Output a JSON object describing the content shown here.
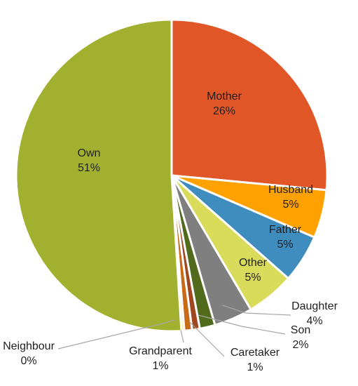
{
  "chart_data": {
    "type": "pie",
    "title": "",
    "start_angle_deg": 0,
    "direction": "clockwise",
    "slices": [
      {
        "label": "Mother",
        "percent_label": "26%",
        "value": 26.5,
        "color": "#E05627"
      },
      {
        "label": "Husband",
        "percent_label": "5%",
        "value": 5.0,
        "color": "#FFA100"
      },
      {
        "label": "Father",
        "percent_label": "5%",
        "value": 5.0,
        "color": "#3F8DBE"
      },
      {
        "label": "Other",
        "percent_label": "5%",
        "value": 5.0,
        "color": "#D9DB5A"
      },
      {
        "label": "Daughter",
        "percent_label": "4%",
        "value": 4.0,
        "color": "#7F7F7F"
      },
      {
        "label": "Son",
        "percent_label": "2%",
        "value": 1.6,
        "color": "#4F6B1B"
      },
      {
        "label": "Caretaker",
        "percent_label": "1%",
        "value": 0.8,
        "color": "#A0471F"
      },
      {
        "label": "Grandparent",
        "percent_label": "1%",
        "value": 0.8,
        "color": "#C86A16"
      },
      {
        "label": "Neighbour",
        "percent_label": "0%",
        "value": 0.3,
        "color": "#FFE9A0"
      },
      {
        "label": "Own",
        "percent_label": "51%",
        "value": 51.0,
        "color": "#A1B12F"
      }
    ]
  }
}
